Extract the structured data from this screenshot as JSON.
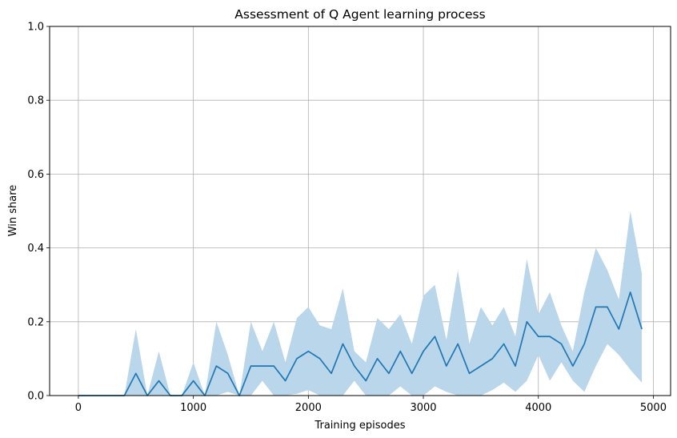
{
  "chart_data": {
    "type": "line",
    "title": "Assessment of Q Agent learning process",
    "xlabel": "Training episodes",
    "ylabel": "Win share",
    "xlim": [
      -250,
      5150
    ],
    "ylim": [
      0,
      1.0
    ],
    "x_ticks": [
      0,
      1000,
      2000,
      3000,
      4000,
      5000
    ],
    "x_tick_labels": [
      "0",
      "1000",
      "2000",
      "3000",
      "4000",
      "5000"
    ],
    "y_ticks": [
      0,
      0.2,
      0.4,
      0.6,
      0.8,
      1.0
    ],
    "y_tick_labels": [
      "0.0",
      "0.2",
      "0.4",
      "0.6",
      "0.8",
      "1.0"
    ],
    "grid": true,
    "colors": {
      "line": "#1f77b4",
      "band": "#bad6ea",
      "grid": "#b0b0b0"
    },
    "series": [
      {
        "x": [
          0,
          100,
          200,
          300,
          400,
          500,
          600,
          700,
          800,
          900,
          1000,
          1100,
          1200,
          1300,
          1400,
          1500,
          1600,
          1700,
          1800,
          1900,
          2000,
          2100,
          2200,
          2300,
          2400,
          2500,
          2600,
          2700,
          2800,
          2900,
          3000,
          3100,
          3200,
          3300,
          3400,
          3500,
          3600,
          3700,
          3800,
          3900,
          4000,
          4100,
          4200,
          4300,
          4400,
          4500,
          4600,
          4700,
          4800,
          4900
        ],
        "y": [
          0,
          0,
          0,
          0,
          0,
          0.06,
          0,
          0.04,
          0,
          0,
          0.04,
          0,
          0.08,
          0.06,
          0,
          0.08,
          0.08,
          0.08,
          0.04,
          0.1,
          0.12,
          0.1,
          0.06,
          0.14,
          0.08,
          0.04,
          0.1,
          0.06,
          0.12,
          0.06,
          0.12,
          0.16,
          0.08,
          0.14,
          0.06,
          0.08,
          0.1,
          0.14,
          0.08,
          0.2,
          0.16,
          0.16,
          0.14,
          0.08,
          0.14,
          0.24,
          0.24,
          0.18,
          0.28,
          0.18
        ],
        "lower": [
          0,
          0,
          0,
          0,
          0,
          0,
          0,
          0,
          0,
          0,
          0,
          0,
          0,
          0.01,
          0,
          0,
          0.04,
          0,
          0,
          0.005,
          0.015,
          0,
          0,
          0,
          0.04,
          0,
          0,
          0,
          0.025,
          0,
          0,
          0.025,
          0.01,
          0,
          0,
          0,
          0.015,
          0.035,
          0.01,
          0.04,
          0.11,
          0.04,
          0.09,
          0.04,
          0.01,
          0.08,
          0.14,
          0.11,
          0.07,
          0.035
        ],
        "upper": [
          0,
          0,
          0,
          0,
          0,
          0.18,
          0,
          0.12,
          0,
          0,
          0.09,
          0,
          0.2,
          0.11,
          0,
          0.2,
          0.12,
          0.2,
          0.09,
          0.21,
          0.24,
          0.19,
          0.18,
          0.29,
          0.12,
          0.09,
          0.21,
          0.18,
          0.22,
          0.14,
          0.27,
          0.3,
          0.15,
          0.34,
          0.14,
          0.24,
          0.19,
          0.24,
          0.16,
          0.37,
          0.22,
          0.28,
          0.19,
          0.12,
          0.28,
          0.4,
          0.34,
          0.26,
          0.5,
          0.33
        ]
      }
    ]
  }
}
